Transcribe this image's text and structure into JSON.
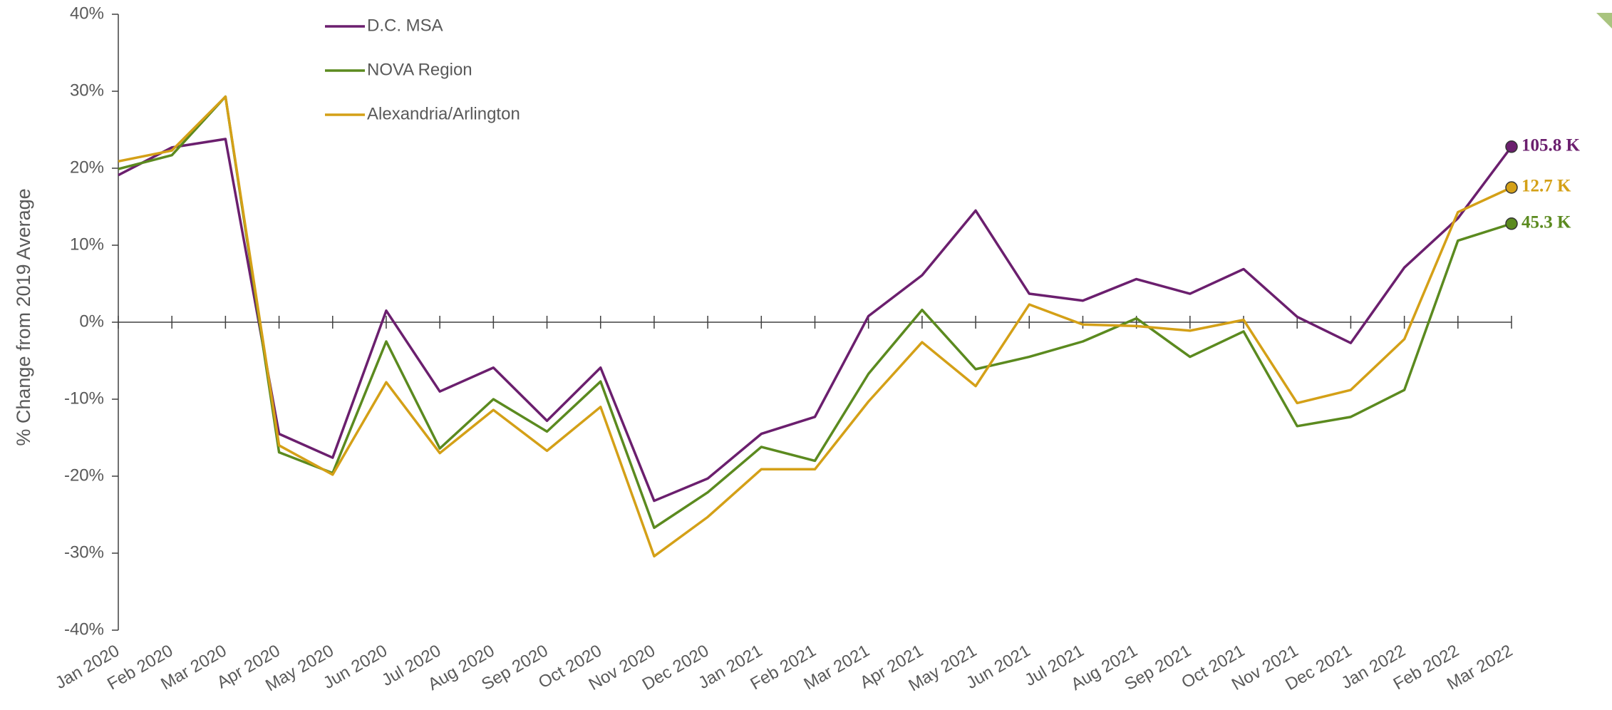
{
  "chart_data": {
    "type": "line",
    "y_label": "% Change from 2019 Average",
    "categories": [
      "Jan 2020",
      "Feb 2020",
      "Mar 2020",
      "Apr 2020",
      "May 2020",
      "Jun 2020",
      "Jul 2020",
      "Aug 2020",
      "Sep 2020",
      "Oct 2020",
      "Nov 2020",
      "Dec 2020",
      "Jan 2021",
      "Feb 2021",
      "Mar 2021",
      "Apr 2021",
      "May 2021",
      "Jun 2021",
      "Jul 2021",
      "Aug 2021",
      "Sep 2021",
      "Oct 2021",
      "Nov 2021",
      "Dec 2021",
      "Jan 2022",
      "Feb 2022",
      "Mar 2022"
    ],
    "series": [
      {
        "name": "D.C. MSA",
        "color": "#6b1f6e",
        "end_label": "105.8 K",
        "values": [
          19.1,
          22.7,
          23.8,
          -14.5,
          -17.6,
          1.5,
          -9,
          -5.9,
          -12.8,
          -5.9,
          -23.2,
          -20.3,
          -14.5,
          -12.3,
          0.8,
          6.1,
          14.5,
          3.7,
          2.8,
          5.6,
          3.7,
          6.9,
          0.7,
          -2.7,
          7.1,
          13.5,
          22.8
        ]
      },
      {
        "name": "NOVA Region",
        "color": "#5b8a1f",
        "end_label": "45.3 K",
        "values": [
          19.9,
          21.7,
          29.3,
          -16.9,
          -19.6,
          -2.5,
          -16.4,
          -10,
          -14.2,
          -7.7,
          -26.7,
          -22.1,
          -16.2,
          -18,
          -6.7,
          1.6,
          -6.1,
          -4.5,
          -2.5,
          0.5,
          -4.5,
          -1.2,
          -13.5,
          -12.3,
          -8.8,
          10.6,
          12.8
        ]
      },
      {
        "name": "Alexandria/Arlington",
        "color": "#d4a017",
        "end_label": "12.7 K",
        "values": [
          20.9,
          22.3,
          29.3,
          -16,
          -19.8,
          -7.8,
          -17,
          -11.4,
          -16.7,
          -11,
          -30.4,
          -25.3,
          -19.1,
          -19.1,
          -10.3,
          -2.6,
          -8.3,
          2.3,
          -0.3,
          -0.5,
          -1.1,
          0.3,
          -10.5,
          -8.8,
          -2.2,
          14.3,
          17.5
        ]
      }
    ],
    "ylim": [
      -40,
      40
    ],
    "yticks": [
      {
        "value": -40,
        "label": "-40%"
      },
      {
        "value": -30,
        "label": "-30%"
      },
      {
        "value": -20,
        "label": "-20%"
      },
      {
        "value": -10,
        "label": "-10%"
      },
      {
        "value": 0,
        "label": "0%"
      },
      {
        "value": 10,
        "label": "10%"
      },
      {
        "value": 20,
        "label": "20%"
      },
      {
        "value": 30,
        "label": "30%"
      },
      {
        "value": 40,
        "label": "40%"
      }
    ],
    "legend": "top-left",
    "grid": false
  }
}
